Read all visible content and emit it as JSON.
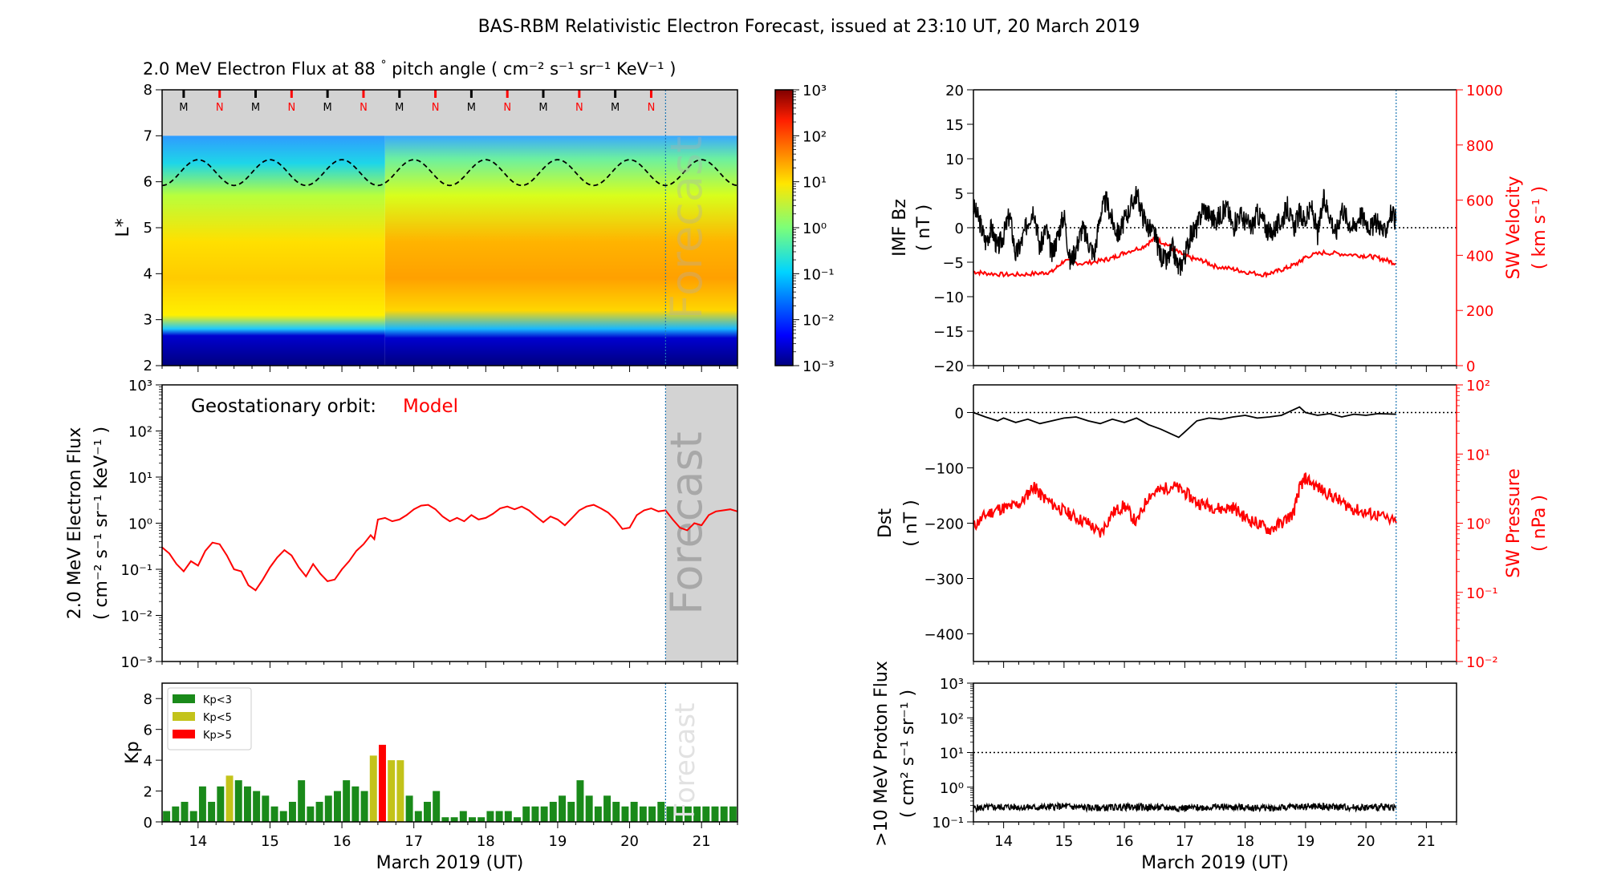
{
  "figure": {
    "title": "BAS-RBM Relativistic Electron Forecast, issued at 23:10 UT, 20 March 2019",
    "xaxis_label": "March 2019 (UT)",
    "forecast_label": "Forecast"
  },
  "colors": {
    "black": "#000000",
    "red": "#ff0000",
    "kp_low": "#1a8a1a",
    "kp_mid": "#c3c31a",
    "kp_high": "#ff0000",
    "forecast_shade": "#d3d3d3",
    "forecast_line": "#1f77b4"
  },
  "chart_data": [
    {
      "id": "spectrogram",
      "type": "heatmap",
      "title_prefix": "2.0 MeV Electron Flux at 88",
      "title_deg": "°",
      "title_pitch": " pitch angle (",
      "title_units": "cm⁻² s⁻¹ sr⁻¹ KeV⁻¹",
      "title_close": ")",
      "ylabel": "L*",
      "xlim": [
        13.5,
        21.5
      ],
      "ylim": [
        2,
        8
      ],
      "yticks": [
        "2",
        "3",
        "4",
        "5",
        "6",
        "7",
        "8"
      ],
      "colorbar_ticks": [
        "10⁻³",
        "10⁻²",
        "10⁻¹",
        "10⁰",
        "10¹",
        "10²",
        "10³"
      ],
      "colorbar_log_range": [
        -3,
        3
      ],
      "mn_markers": [
        "M",
        "N",
        "M",
        "N",
        "M",
        "N",
        "M",
        "N",
        "M",
        "N",
        "M",
        "N",
        "M",
        "N"
      ],
      "forecast_start": 20.5
    },
    {
      "id": "geo_flux",
      "type": "line",
      "annotation": "Geostationary orbit:",
      "annotation_model": "Model",
      "ylabel_line1": "2.0 MeV Electron Flux",
      "ylabel_line2": "( cm⁻² s⁻¹ sr⁻¹ KeV⁻¹ )",
      "yscale": "log",
      "ylim": [
        0.001,
        1000
      ],
      "yticks": [
        "10⁻³",
        "10⁻²",
        "10⁻¹",
        "10⁰",
        "10¹",
        "10²",
        "10³"
      ],
      "series": [
        {
          "x": [
            13.5,
            13.6,
            13.7,
            13.8,
            13.9,
            14.0,
            14.1,
            14.2,
            14.3,
            14.4,
            14.5,
            14.6,
            14.7,
            14.8,
            14.9,
            15.0,
            15.1,
            15.2,
            15.3,
            15.4,
            15.5,
            15.6,
            15.7,
            15.8,
            15.9,
            16.0,
            16.1,
            16.2,
            16.3,
            16.4,
            16.45,
            16.5,
            16.6,
            16.7,
            16.8,
            16.9,
            17.0,
            17.1,
            17.2,
            17.3,
            17.4,
            17.5,
            17.6,
            17.7,
            17.8,
            17.9,
            18.0,
            18.1,
            18.2,
            18.3,
            18.4,
            18.5,
            18.6,
            18.7,
            18.8,
            18.9,
            19.0,
            19.1,
            19.2,
            19.3,
            19.4,
            19.5,
            19.6,
            19.7,
            19.8,
            19.9,
            20.0,
            20.1,
            20.2,
            20.3,
            20.4,
            20.5,
            20.6,
            20.7,
            20.8,
            20.9,
            21.0,
            21.1,
            21.2,
            21.3,
            21.4,
            21.5
          ],
          "y": [
            0.3,
            0.22,
            0.13,
            0.09,
            0.15,
            0.12,
            0.25,
            0.38,
            0.35,
            0.2,
            0.1,
            0.09,
            0.045,
            0.035,
            0.06,
            0.11,
            0.18,
            0.26,
            0.2,
            0.11,
            0.07,
            0.13,
            0.08,
            0.055,
            0.06,
            0.1,
            0.15,
            0.25,
            0.35,
            0.55,
            0.45,
            1.2,
            1.3,
            1.1,
            1.2,
            1.5,
            2.0,
            2.4,
            2.5,
            2.0,
            1.4,
            1.1,
            1.3,
            1.1,
            1.5,
            1.2,
            1.3,
            1.6,
            2.1,
            2.3,
            2.0,
            2.3,
            1.9,
            1.4,
            1.05,
            1.4,
            1.2,
            0.9,
            1.3,
            1.9,
            2.3,
            2.5,
            2.1,
            1.7,
            1.2,
            0.75,
            0.8,
            1.5,
            1.9,
            2.1,
            1.8,
            1.9,
            1.2,
            0.8,
            0.7,
            1.0,
            0.9,
            1.5,
            1.8,
            1.9,
            2.0,
            1.8
          ]
        }
      ]
    },
    {
      "id": "kp",
      "type": "bar",
      "ylabel": "Kp",
      "ylim": [
        0,
        9
      ],
      "yticks": [
        "0",
        "2",
        "4",
        "6",
        "8"
      ],
      "xticks": [
        "14",
        "15",
        "16",
        "17",
        "18",
        "19",
        "20",
        "21"
      ],
      "legend": [
        "Kp<3",
        "Kp<5",
        "Kp>5"
      ],
      "legend_placement": "top-left",
      "bar_width_days": 0.1,
      "x": [
        13.5625,
        13.6875,
        13.8125,
        13.9375,
        14.0625,
        14.1875,
        14.3125,
        14.4375,
        14.5625,
        14.6875,
        14.8125,
        14.9375,
        15.0625,
        15.1875,
        15.3125,
        15.4375,
        15.5625,
        15.6875,
        15.8125,
        15.9375,
        16.0625,
        16.1875,
        16.3125,
        16.4375,
        16.5625,
        16.6875,
        16.8125,
        16.9375,
        17.0625,
        17.1875,
        17.3125,
        17.4375,
        17.5625,
        17.6875,
        17.8125,
        17.9375,
        18.0625,
        18.1875,
        18.3125,
        18.4375,
        18.5625,
        18.6875,
        18.8125,
        18.9375,
        19.0625,
        19.1875,
        19.3125,
        19.4375,
        19.5625,
        19.6875,
        19.8125,
        19.9375,
        20.0625,
        20.1875,
        20.3125,
        20.4375,
        20.5625,
        20.6875,
        20.8125,
        20.9375,
        21.0625,
        21.1875,
        21.3125,
        21.4375
      ],
      "values": [
        0.7,
        1.0,
        1.3,
        0.7,
        2.3,
        1.3,
        2.3,
        3.0,
        2.7,
        2.3,
        2.0,
        1.7,
        1.0,
        0.7,
        1.3,
        2.7,
        1.0,
        1.3,
        1.7,
        2.0,
        2.7,
        2.3,
        2.0,
        4.3,
        5.0,
        4.0,
        4.0,
        1.7,
        0.7,
        1.3,
        2.0,
        0.3,
        0.3,
        0.7,
        0.3,
        0.3,
        0.7,
        0.7,
        0.7,
        0.3,
        1.0,
        1.0,
        1.0,
        1.3,
        1.7,
        1.3,
        2.7,
        1.7,
        1.0,
        1.7,
        1.3,
        1.0,
        1.3,
        1.0,
        1.0,
        1.3,
        1.0,
        1.0,
        1.0,
        1.0,
        1.0,
        1.0,
        1.0,
        1.0
      ]
    },
    {
      "id": "imf_sw",
      "type": "line",
      "ylabel_left_line1": "IMF Bz",
      "ylabel_left_line2": "( nT )",
      "ylabel_right_line1": "SW Velocity",
      "ylabel_right_line2": "( km s⁻¹ )",
      "ylim_left": [
        -20,
        20
      ],
      "ylim_right": [
        0,
        1000
      ],
      "yticks_left": [
        "−20",
        "−15",
        "−10",
        "−5",
        "0",
        "5",
        "10",
        "15",
        "20"
      ],
      "yticks_right": [
        "0",
        "200",
        "400",
        "600",
        "800",
        "1000"
      ],
      "series": [
        {
          "name": "IMF Bz",
          "x": [
            13.5,
            13.6,
            13.7,
            13.8,
            13.9,
            14.0,
            14.1,
            14.2,
            14.3,
            14.4,
            14.5,
            14.6,
            14.7,
            14.8,
            14.9,
            15.0,
            15.1,
            15.2,
            15.3,
            15.4,
            15.5,
            15.6,
            15.7,
            15.8,
            15.9,
            16.0,
            16.1,
            16.2,
            16.3,
            16.4,
            16.5,
            16.6,
            16.7,
            16.8,
            16.9,
            17.0,
            17.1,
            17.2,
            17.3,
            17.4,
            17.5,
            17.6,
            17.7,
            17.8,
            17.9,
            18.0,
            18.1,
            18.2,
            18.3,
            18.4,
            18.5,
            18.6,
            18.7,
            18.8,
            18.9,
            19.0,
            19.1,
            19.2,
            19.3,
            19.4,
            19.5,
            19.6,
            19.7,
            19.8,
            19.9,
            20.0,
            20.1,
            20.2,
            20.3,
            20.4,
            20.5
          ],
          "y": [
            3,
            1,
            -2,
            0,
            -3,
            -1,
            2,
            -4,
            -2,
            1,
            3,
            -3,
            0,
            -4,
            -1,
            2,
            -5,
            -3,
            0,
            -2,
            -4,
            2,
            4,
            1,
            -1,
            1,
            3,
            5,
            2,
            0,
            -1,
            -4,
            -5,
            -3,
            -6,
            -4,
            -1,
            0,
            3,
            2,
            1,
            2,
            3,
            0,
            2,
            1,
            0,
            2,
            1,
            -1,
            0,
            1,
            3,
            0,
            2,
            1,
            3,
            -1,
            4,
            2,
            -1,
            3,
            1,
            0,
            2,
            1,
            0,
            1,
            -1,
            2,
            1
          ]
        },
        {
          "name": "SW Velocity",
          "x": [
            13.5,
            13.7,
            14.0,
            14.3,
            14.6,
            14.8,
            15.0,
            15.3,
            15.6,
            15.8,
            16.0,
            16.3,
            16.5,
            16.7,
            16.9,
            17.1,
            17.3,
            17.5,
            17.8,
            18.0,
            18.3,
            18.5,
            18.7,
            18.9,
            19.0,
            19.3,
            19.6,
            19.9,
            20.1,
            20.3,
            20.5
          ],
          "y": [
            340,
            335,
            330,
            330,
            335,
            340,
            380,
            370,
            380,
            390,
            410,
            430,
            460,
            440,
            410,
            390,
            380,
            360,
            350,
            340,
            330,
            340,
            355,
            375,
            395,
            410,
            405,
            400,
            395,
            385,
            370
          ]
        }
      ]
    },
    {
      "id": "dst_pressure",
      "type": "line",
      "ylabel_left_line1": "Dst",
      "ylabel_left_line2": "( nT )",
      "ylabel_right_line1": "SW Pressure",
      "ylabel_right_line2": "( nPa )",
      "ylim_left": [
        -450,
        50
      ],
      "ylim_right_log": [
        -2,
        2
      ],
      "yticks_left": [
        "−400",
        "−300",
        "−200",
        "−100",
        "0"
      ],
      "yticks_right": [
        "10⁻²",
        "10⁻¹",
        "10⁰",
        "10¹",
        "10²"
      ],
      "series": [
        {
          "name": "Dst",
          "x": [
            13.5,
            13.7,
            13.9,
            14.0,
            14.2,
            14.4,
            14.6,
            14.8,
            15.0,
            15.2,
            15.4,
            15.6,
            15.8,
            16.0,
            16.2,
            16.4,
            16.6,
            16.8,
            16.9,
            17.0,
            17.2,
            17.4,
            17.6,
            17.8,
            18.0,
            18.2,
            18.4,
            18.6,
            18.8,
            18.9,
            19.0,
            19.2,
            19.4,
            19.6,
            19.8,
            20.0,
            20.2,
            20.5
          ],
          "y": [
            0,
            -8,
            -15,
            -10,
            -18,
            -12,
            -20,
            -15,
            -10,
            -8,
            -15,
            -20,
            -12,
            -18,
            -10,
            -22,
            -30,
            -40,
            -45,
            -35,
            -15,
            -10,
            -12,
            -8,
            -5,
            -10,
            -8,
            -5,
            5,
            10,
            0,
            -5,
            -2,
            -8,
            -3,
            -5,
            -2,
            -3
          ]
        },
        {
          "name": "SW Pressure",
          "x": [
            13.5,
            13.7,
            13.9,
            14.1,
            14.3,
            14.5,
            14.6,
            14.8,
            15.0,
            15.2,
            15.4,
            15.6,
            15.8,
            16.0,
            16.2,
            16.4,
            16.6,
            16.8,
            17.0,
            17.2,
            17.4,
            17.6,
            17.8,
            18.0,
            18.2,
            18.4,
            18.6,
            18.8,
            18.9,
            19.0,
            19.2,
            19.4,
            19.6,
            19.8,
            20.0,
            20.2,
            20.5
          ],
          "y": [
            0.9,
            1.3,
            1.6,
            1.7,
            2.0,
            3.5,
            2.6,
            1.9,
            1.5,
            1.2,
            1.0,
            0.7,
            1.4,
            1.8,
            1.0,
            2.5,
            3.0,
            3.5,
            2.8,
            2.0,
            1.8,
            1.6,
            1.7,
            1.2,
            1.0,
            0.8,
            1.0,
            1.4,
            3.2,
            4.5,
            3.3,
            2.6,
            2.0,
            1.6,
            1.4,
            1.3,
            1.0
          ]
        }
      ]
    },
    {
      "id": "proton_flux",
      "type": "line",
      "ylabel_line1": ">10 MeV Proton Flux",
      "ylabel_line2": "( cm² s⁻¹ sr⁻¹ )",
      "yscale": "log",
      "ylim": [
        0.1,
        1000
      ],
      "yticks": [
        "10⁻¹",
        "10⁰",
        "10¹",
        "10²",
        "10³"
      ],
      "threshold": 10,
      "xticks": [
        "14",
        "15",
        "16",
        "17",
        "18",
        "19",
        "20",
        "21"
      ],
      "series": [
        {
          "name": ">10 MeV Proton Flux",
          "x": [
            13.5,
            14.0,
            14.5,
            15.0,
            15.5,
            16.0,
            16.5,
            17.0,
            17.5,
            18.0,
            18.5,
            19.0,
            19.5,
            20.0,
            20.5
          ],
          "y": [
            0.25,
            0.27,
            0.26,
            0.28,
            0.25,
            0.27,
            0.26,
            0.25,
            0.27,
            0.26,
            0.25,
            0.28,
            0.27,
            0.26,
            0.27
          ]
        }
      ]
    }
  ]
}
